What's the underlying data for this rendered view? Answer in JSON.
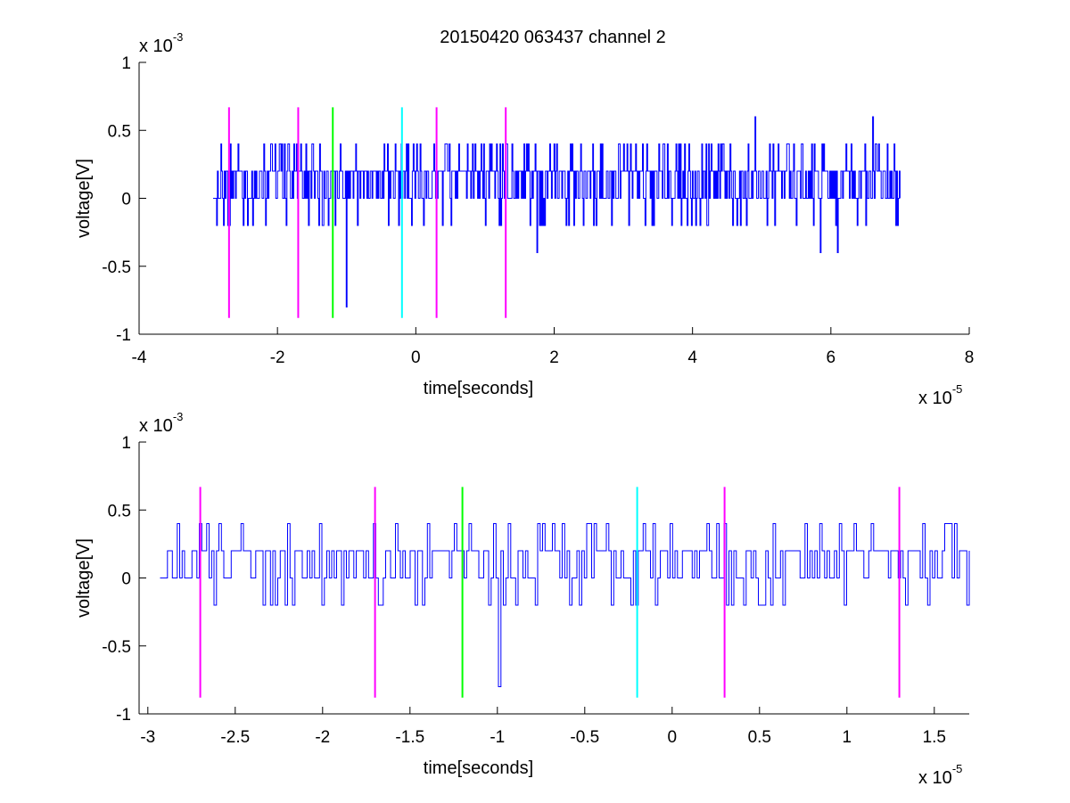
{
  "figure": {
    "title": "20150420 063437 channel 2"
  },
  "chart_data": [
    {
      "type": "line",
      "title": "20150420 063437 channel 2",
      "xlabel": "time[seconds]",
      "ylabel": "voltage[V]",
      "xlim": [
        -4,
        8
      ],
      "ylim": [
        -1,
        1
      ],
      "x_ticks": [
        "-4",
        "-2",
        "0",
        "2",
        "4",
        "6",
        "8"
      ],
      "y_ticks": [
        "-1",
        "-0.5",
        "0",
        "0.5",
        "1"
      ],
      "x_exponent": {
        "base": "x 10",
        "power": "-5"
      },
      "y_exponent": {
        "base": "x 10",
        "power": "-3"
      },
      "grid": false,
      "trace_color": "#0000ff",
      "trace_x_range": [
        -2.93,
        7.0
      ],
      "trace_levels": [
        -0.8,
        -0.4,
        -0.2,
        0,
        0.2,
        0.4,
        0.6
      ],
      "markers": [
        {
          "x": -2.7,
          "color": "#ff00ff"
        },
        {
          "x": -1.7,
          "color": "#ff00ff"
        },
        {
          "x": -1.2,
          "color": "#00ff00"
        },
        {
          "x": -0.2,
          "color": "#00ffff"
        },
        {
          "x": 0.3,
          "color": "#ff00ff"
        },
        {
          "x": 1.3,
          "color": "#ff00ff"
        }
      ],
      "marker_span": [
        -0.88,
        0.67
      ],
      "spikes": [
        {
          "x": -1.0,
          "y": -0.8
        },
        {
          "x": 1.75,
          "y": -0.4
        },
        {
          "x": 4.9,
          "y": 0.6
        },
        {
          "x": 5.85,
          "y": -0.4
        },
        {
          "x": 6.6,
          "y": 0.6
        },
        {
          "x": 6.1,
          "y": -0.4
        }
      ]
    },
    {
      "type": "line",
      "title": "",
      "xlabel": "time[seconds]",
      "ylabel": "voltage[V]",
      "xlim": [
        -3.05,
        1.7
      ],
      "ylim": [
        -1,
        1
      ],
      "x_ticks": [
        "-3",
        "-2.5",
        "-2",
        "-1.5",
        "-1",
        "-0.5",
        "0",
        "0.5",
        "1",
        "1.5"
      ],
      "x_tick_values": [
        -3,
        -2.5,
        -2,
        -1.5,
        -1,
        -0.5,
        0,
        0.5,
        1,
        1.5
      ],
      "y_ticks": [
        "-1",
        "-0.5",
        "0",
        "0.5",
        "1"
      ],
      "x_exponent": {
        "base": "x 10",
        "power": "-5"
      },
      "y_exponent": {
        "base": "x 10",
        "power": "-3"
      },
      "grid": false,
      "trace_color": "#0000ff",
      "trace_x_range": [
        -2.93,
        1.7
      ],
      "trace_levels": [
        -0.8,
        -0.2,
        0,
        0.2,
        0.4
      ],
      "markers": [
        {
          "x": -2.7,
          "color": "#ff00ff"
        },
        {
          "x": -1.7,
          "color": "#ff00ff"
        },
        {
          "x": -1.2,
          "color": "#00ff00"
        },
        {
          "x": -0.2,
          "color": "#00ffff"
        },
        {
          "x": 0.3,
          "color": "#ff00ff"
        },
        {
          "x": 1.3,
          "color": "#ff00ff"
        }
      ],
      "marker_span": [
        -0.88,
        0.67
      ],
      "spikes": [
        {
          "x": -1.0,
          "y": -0.8
        },
        {
          "x": -2.3,
          "y": -0.2
        },
        {
          "x": -1.68,
          "y": -0.2
        },
        {
          "x": 0.31,
          "y": -0.2
        },
        {
          "x": 1.69,
          "y": -0.2
        }
      ]
    }
  ]
}
